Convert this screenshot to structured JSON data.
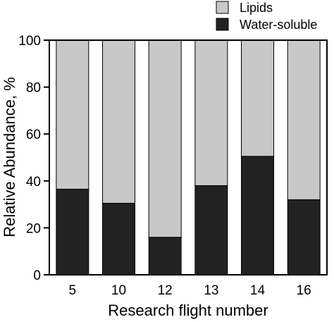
{
  "chart_data": {
    "type": "bar",
    "stacked": true,
    "categories": [
      "5",
      "10",
      "12",
      "13",
      "14",
      "16"
    ],
    "series": [
      {
        "name": "Water-soluble",
        "values": [
          36.5,
          30.5,
          16,
          38,
          50.5,
          32
        ],
        "color": "#222222"
      },
      {
        "name": "Lipids",
        "values": [
          63.5,
          69.5,
          84,
          62,
          49.5,
          68
        ],
        "color": "#c8c8c8"
      }
    ],
    "title": "",
    "xlabel": "Research flight number",
    "ylabel": "Relative Abundance, %",
    "ylim": [
      0,
      100
    ],
    "yticks": [
      "0",
      "20",
      "40",
      "60",
      "80",
      "100"
    ],
    "grid": false,
    "legend_position": "top-right",
    "legend": [
      "Lipids",
      "Water-soluble"
    ]
  }
}
